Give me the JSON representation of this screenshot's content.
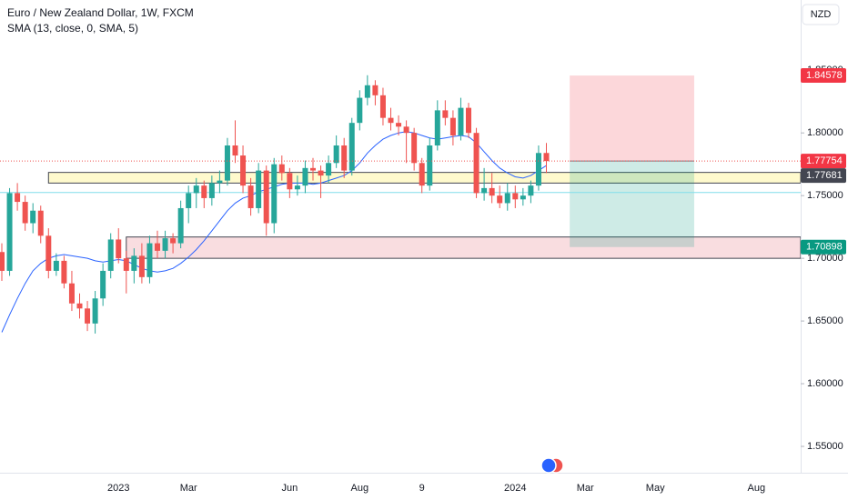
{
  "chart_data": {
    "type": "candlestick",
    "title": "Euro / New Zealand Dollar, 1W, FXCM",
    "indicator": "SMA (13, close, 0, SMA, 5)",
    "currency": "NZD",
    "up_color": "#26a69a",
    "down_color": "#ef5350",
    "sma_color": "#2962ff",
    "grid": false,
    "ylim": [
      1.529,
      1.906
    ],
    "yticks": [
      {
        "value": 1.55,
        "label": "1.55000"
      },
      {
        "value": 1.6,
        "label": "1.60000"
      },
      {
        "value": 1.65,
        "label": "1.65000"
      },
      {
        "value": 1.7,
        "label": "1.70000"
      },
      {
        "value": 1.75,
        "label": "1.75000"
      },
      {
        "value": 1.8,
        "label": "1.80000"
      },
      {
        "value": 1.85,
        "label": "1.85000"
      }
    ],
    "categories": [
      null,
      null,
      null,
      null,
      null,
      null,
      null,
      null,
      null,
      null,
      null,
      null,
      null,
      null,
      null,
      "2023",
      null,
      null,
      null,
      null,
      null,
      null,
      null,
      null,
      "Mar",
      null,
      null,
      null,
      null,
      null,
      null,
      null,
      null,
      null,
      null,
      null,
      null,
      "Jun",
      null,
      null,
      null,
      null,
      null,
      null,
      null,
      null,
      "Aug",
      null,
      null,
      null,
      null,
      null,
      null,
      null,
      "9",
      null,
      null,
      null,
      null,
      null,
      null,
      null,
      null,
      null,
      null,
      null,
      "2024",
      null,
      null,
      null,
      null,
      null,
      null,
      null,
      null,
      "Mar",
      null,
      null,
      null,
      null,
      null,
      null,
      null,
      null,
      "May",
      null,
      null,
      null,
      null,
      null,
      null,
      null,
      null,
      null,
      null,
      null,
      null,
      "Aug"
    ],
    "candles": [
      [
        1.705,
        1.712,
        1.682,
        1.69
      ],
      [
        1.69,
        1.756,
        1.686,
        1.752
      ],
      [
        1.752,
        1.76,
        1.738,
        1.745
      ],
      [
        1.745,
        1.75,
        1.722,
        1.728
      ],
      [
        1.728,
        1.744,
        1.72,
        1.738
      ],
      [
        1.738,
        1.742,
        1.712,
        1.718
      ],
      [
        1.718,
        1.724,
        1.684,
        1.69
      ],
      [
        1.69,
        1.704,
        1.686,
        1.698
      ],
      [
        1.698,
        1.702,
        1.676,
        1.68
      ],
      [
        1.68,
        1.69,
        1.658,
        1.664
      ],
      [
        1.664,
        1.672,
        1.652,
        1.66
      ],
      [
        1.66,
        1.666,
        1.642,
        1.648
      ],
      [
        1.648,
        1.674,
        1.64,
        1.668
      ],
      [
        1.668,
        1.696,
        1.662,
        1.69
      ],
      [
        1.69,
        1.72,
        1.684,
        1.715
      ],
      [
        1.715,
        1.724,
        1.696,
        1.7
      ],
      [
        1.7,
        1.706,
        1.672,
        1.69
      ],
      [
        1.69,
        1.708,
        1.68,
        1.702
      ],
      [
        1.702,
        1.712,
        1.68,
        1.685
      ],
      [
        1.685,
        1.718,
        1.68,
        1.712
      ],
      [
        1.712,
        1.722,
        1.7,
        1.706
      ],
      [
        1.706,
        1.722,
        1.7,
        1.716
      ],
      [
        1.716,
        1.72,
        1.704,
        1.712
      ],
      [
        1.712,
        1.746,
        1.708,
        1.74
      ],
      [
        1.74,
        1.758,
        1.728,
        1.752
      ],
      [
        1.752,
        1.764,
        1.74,
        1.758
      ],
      [
        1.758,
        1.762,
        1.74,
        1.748
      ],
      [
        1.748,
        1.766,
        1.742,
        1.76
      ],
      [
        1.76,
        1.77,
        1.752,
        1.762
      ],
      [
        1.762,
        1.796,
        1.758,
        1.79
      ],
      [
        1.79,
        1.81,
        1.776,
        1.782
      ],
      [
        1.782,
        1.79,
        1.752,
        1.758
      ],
      [
        1.758,
        1.764,
        1.734,
        1.74
      ],
      [
        1.74,
        1.776,
        1.736,
        1.77
      ],
      [
        1.77,
        1.774,
        1.718,
        1.728
      ],
      [
        1.728,
        1.78,
        1.72,
        1.775
      ],
      [
        1.775,
        1.782,
        1.762,
        1.768
      ],
      [
        1.768,
        1.772,
        1.748,
        1.755
      ],
      [
        1.755,
        1.766,
        1.75,
        1.758
      ],
      [
        1.758,
        1.778,
        1.752,
        1.772
      ],
      [
        1.772,
        1.78,
        1.762,
        1.77
      ],
      [
        1.77,
        1.774,
        1.748,
        1.766
      ],
      [
        1.766,
        1.782,
        1.76,
        1.776
      ],
      [
        1.776,
        1.798,
        1.772,
        1.79
      ],
      [
        1.79,
        1.796,
        1.764,
        1.77
      ],
      [
        1.77,
        1.812,
        1.766,
        1.808
      ],
      [
        1.808,
        1.834,
        1.802,
        1.828
      ],
      [
        1.828,
        1.846,
        1.822,
        1.838
      ],
      [
        1.838,
        1.842,
        1.822,
        1.83
      ],
      [
        1.83,
        1.836,
        1.806,
        1.812
      ],
      [
        1.812,
        1.82,
        1.802,
        1.808
      ],
      [
        1.808,
        1.814,
        1.798,
        1.805
      ],
      [
        1.805,
        1.81,
        1.776,
        1.8
      ],
      [
        1.8,
        1.804,
        1.77,
        1.776
      ],
      [
        1.776,
        1.78,
        1.752,
        1.758
      ],
      [
        1.758,
        1.796,
        1.754,
        1.79
      ],
      [
        1.79,
        1.826,
        1.786,
        1.818
      ],
      [
        1.818,
        1.826,
        1.806,
        1.812
      ],
      [
        1.812,
        1.818,
        1.79,
        1.798
      ],
      [
        1.798,
        1.828,
        1.794,
        1.82
      ],
      [
        1.82,
        1.824,
        1.796,
        1.8
      ],
      [
        1.8,
        1.804,
        1.748,
        1.752
      ],
      [
        1.752,
        1.772,
        1.746,
        1.756
      ],
      [
        1.756,
        1.768,
        1.744,
        1.75
      ],
      [
        1.75,
        1.758,
        1.74,
        1.744
      ],
      [
        1.744,
        1.76,
        1.738,
        1.752
      ],
      [
        1.752,
        1.758,
        1.74,
        1.747
      ],
      [
        1.747,
        1.756,
        1.742,
        1.75
      ],
      [
        1.75,
        1.762,
        1.744,
        1.758
      ],
      [
        1.758,
        1.79,
        1.754,
        1.784
      ],
      [
        1.784,
        1.792,
        1.768,
        1.77754
      ],
      null,
      null,
      null,
      null,
      null,
      null,
      null,
      null,
      null,
      null,
      null,
      null,
      null,
      null,
      null,
      null,
      null,
      null,
      null,
      null,
      null,
      null,
      null,
      null,
      null,
      null,
      null
    ],
    "sma": [
      1.641,
      1.655,
      1.668,
      1.68,
      1.69,
      1.696,
      1.7,
      1.702,
      1.703,
      1.702,
      1.701,
      1.7,
      1.698,
      1.697,
      1.698,
      1.699,
      1.698,
      1.695,
      1.692,
      1.69,
      1.689,
      1.69,
      1.692,
      1.696,
      1.701,
      1.707,
      1.714,
      1.722,
      1.73,
      1.738,
      1.744,
      1.748,
      1.75,
      1.753,
      1.755,
      1.757,
      1.759,
      1.76,
      1.76,
      1.76,
      1.759,
      1.76,
      1.762,
      1.764,
      1.766,
      1.77,
      1.776,
      1.784,
      1.79,
      1.795,
      1.798,
      1.8,
      1.801,
      1.8,
      1.798,
      1.796,
      1.795,
      1.796,
      1.797,
      1.798,
      1.797,
      1.792,
      1.785,
      1.778,
      1.772,
      1.768,
      1.765,
      1.764,
      1.766,
      1.77,
      1.774,
      null,
      null,
      null,
      null,
      null,
      null,
      null,
      null,
      null,
      null,
      null,
      null,
      null,
      null,
      null,
      null,
      null,
      null,
      null,
      null,
      null,
      null,
      null,
      null,
      null,
      null,
      null
    ],
    "zones": [
      {
        "from": 1.76,
        "to": 1.7685,
        "start": 6,
        "fill": "#fff9c4",
        "stroke": "#434651"
      },
      {
        "from": 1.7,
        "to": 1.717,
        "start": 16,
        "fill": "#f8d7da",
        "stroke": "#434651"
      }
    ],
    "hlines": [
      {
        "value": 1.7525,
        "color": "#80deea"
      }
    ],
    "position": {
      "stop": 1.84578,
      "entry": 1.77754,
      "target": 1.70898,
      "start": 73,
      "end": 89
    },
    "price_labels": [
      {
        "value": 1.84578,
        "color": "#f23645"
      },
      {
        "value": 1.77754,
        "color": "#f23645"
      },
      {
        "value": 1.77681,
        "color": "#434651"
      },
      {
        "value": 1.70898,
        "color": "#089981"
      }
    ]
  }
}
